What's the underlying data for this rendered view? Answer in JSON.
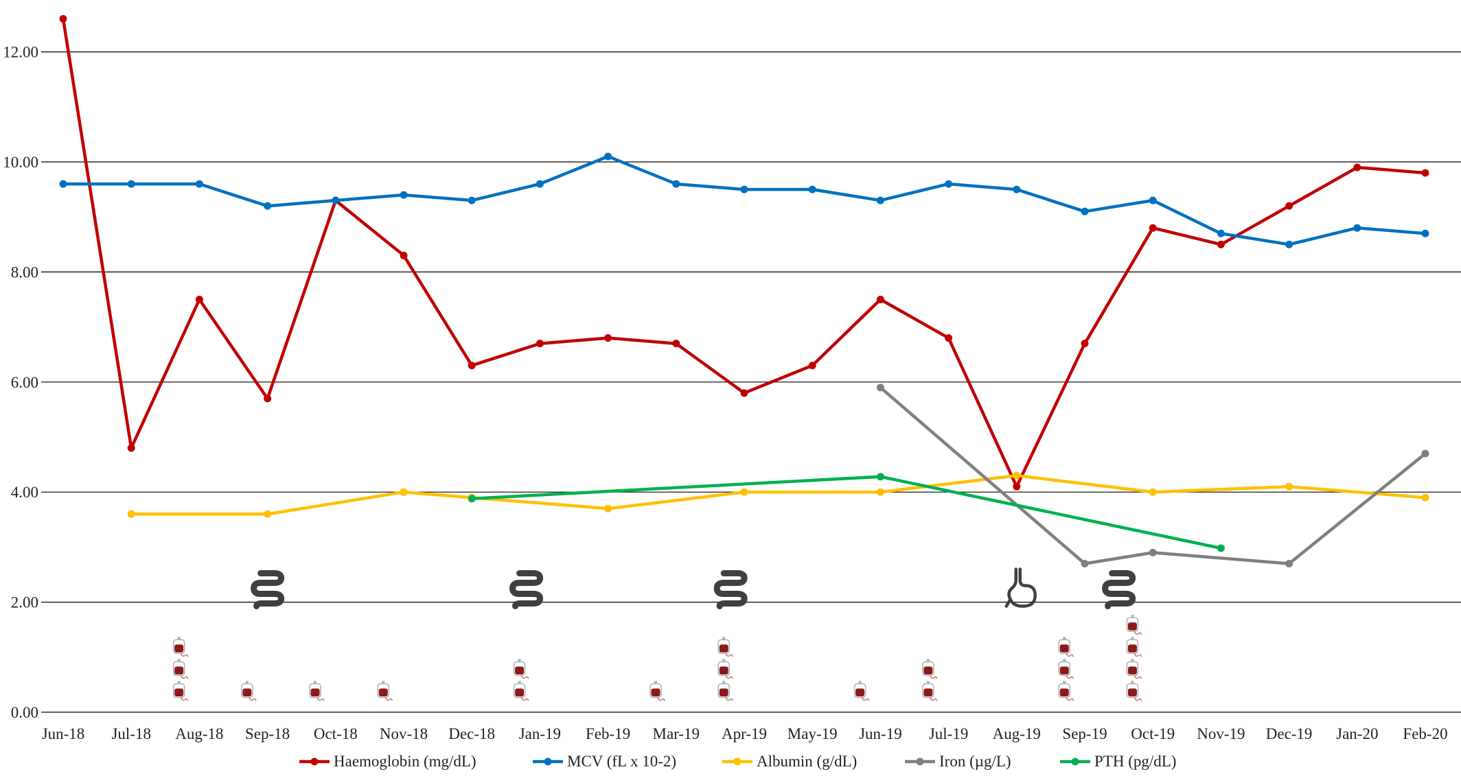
{
  "chart_data": {
    "type": "line",
    "title": "",
    "xlabel": "",
    "ylabel": "",
    "ylim": [
      0,
      12.8
    ],
    "yticks": [
      0,
      2,
      4,
      6,
      8,
      10,
      12
    ],
    "ytick_labels": [
      "0.00",
      "2.00",
      "4.00",
      "6.00",
      "8.00",
      "10.00",
      "12.00"
    ],
    "grid": "horizontal",
    "legend_position": "bottom",
    "x_unit": "months since Jun-18",
    "x_tick_labels": [
      "Jun-18",
      "Jul-18",
      "Aug-18",
      "Sep-18",
      "Oct-18",
      "Nov-18",
      "Dec-18",
      "Jan-19",
      "Feb-19",
      "Mar-19",
      "Apr-19",
      "May-19",
      "Jun-19",
      "Jul-19",
      "Aug-19",
      "Sep-19",
      "Oct-19",
      "Nov-19",
      "Dec-19",
      "Jan-20",
      "Feb-20"
    ],
    "series": [
      {
        "name": "Haemoglobin (mg/dL)",
        "color": "#C00000",
        "points": [
          [
            0.0,
            12.6
          ],
          [
            1.0,
            4.8
          ],
          [
            2.0,
            7.5
          ],
          [
            3.0,
            5.7
          ],
          [
            4.0,
            9.3
          ],
          [
            5.0,
            8.3
          ],
          [
            6.0,
            6.3
          ],
          [
            7.0,
            6.7
          ],
          [
            8.0,
            6.8
          ],
          [
            9.0,
            6.7
          ],
          [
            10.0,
            5.8
          ],
          [
            11.0,
            6.3
          ],
          [
            12.0,
            7.5
          ],
          [
            13.0,
            6.8
          ],
          [
            14.0,
            4.1
          ],
          [
            15.0,
            6.7
          ],
          [
            16.0,
            8.8
          ],
          [
            17.0,
            8.5
          ],
          [
            18.0,
            9.2
          ],
          [
            19.0,
            9.9
          ],
          [
            20.0,
            9.8
          ]
        ]
      },
      {
        "name": "MCV (fL x 10-2)",
        "color": "#0070C0",
        "points": [
          [
            0.0,
            9.6
          ],
          [
            1.0,
            9.6
          ],
          [
            2.0,
            9.6
          ],
          [
            3.0,
            9.2
          ],
          [
            4.0,
            9.3
          ],
          [
            5.0,
            9.4
          ],
          [
            6.0,
            9.3
          ],
          [
            7.0,
            9.6
          ],
          [
            8.0,
            10.1
          ],
          [
            9.0,
            9.6
          ],
          [
            10.0,
            9.5
          ],
          [
            11.0,
            9.5
          ],
          [
            12.0,
            9.3
          ],
          [
            13.0,
            9.6
          ],
          [
            14.0,
            9.5
          ],
          [
            15.0,
            9.1
          ],
          [
            16.0,
            9.3
          ],
          [
            17.0,
            8.7
          ],
          [
            18.0,
            8.5
          ],
          [
            19.0,
            8.8
          ],
          [
            20.0,
            8.7
          ]
        ]
      },
      {
        "name": "Albumin (g/dL)",
        "color": "#FFC000",
        "points": [
          [
            1.0,
            3.6
          ],
          [
            3.0,
            3.6
          ],
          [
            5.0,
            4.0
          ],
          [
            6.0,
            3.9
          ],
          [
            8.0,
            3.7
          ],
          [
            10.0,
            4.0
          ],
          [
            12.0,
            4.0
          ],
          [
            14.0,
            4.3
          ],
          [
            16.0,
            4.0
          ],
          [
            18.0,
            4.1
          ],
          [
            20.0,
            3.9
          ]
        ]
      },
      {
        "name": "Iron (µg/L)",
        "color": "#7F7F7F",
        "points": [
          [
            12.0,
            5.9
          ],
          [
            15.0,
            2.7
          ],
          [
            16.0,
            2.9
          ],
          [
            18.0,
            2.7
          ],
          [
            20.0,
            4.7
          ]
        ]
      },
      {
        "name": "PTH (pg/dL)",
        "color": "#00B050",
        "points": [
          [
            6.0,
            3.88
          ],
          [
            12.0,
            4.28
          ],
          [
            17.0,
            2.98
          ]
        ]
      }
    ],
    "annotations": {
      "endoscopy_icon_name": "intestine-icon",
      "endoscopy_icon_color": "#404040",
      "endoscopy_x": [
        3.0,
        6.8,
        9.8,
        15.5
      ],
      "endoscopy_y": 2.25,
      "gastroscopy_icon_name": "stomach-icon",
      "gastroscopy_icon_color": "#404040",
      "gastroscopy_x": [
        14.05
      ],
      "gastroscopy_y": 2.25,
      "transfusion_icon_name": "blood-bag-icon",
      "transfusion_icon_color": "#8B1A1A",
      "transfusions": [
        {
          "x": 1.7,
          "units": 3
        },
        {
          "x": 2.7,
          "units": 1
        },
        {
          "x": 3.7,
          "units": 1
        },
        {
          "x": 4.7,
          "units": 1
        },
        {
          "x": 6.7,
          "units": 2
        },
        {
          "x": 8.7,
          "units": 1
        },
        {
          "x": 9.7,
          "units": 3
        },
        {
          "x": 11.7,
          "units": 1
        },
        {
          "x": 12.7,
          "units": 2
        },
        {
          "x": 14.7,
          "units": 3
        },
        {
          "x": 15.7,
          "units": 4
        }
      ]
    }
  }
}
